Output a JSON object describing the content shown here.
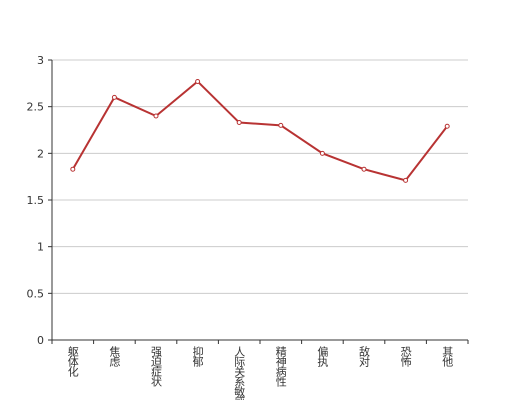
{
  "chart_data": {
    "type": "line",
    "categories": [
      "躯体化",
      "焦虑",
      "强迫症状",
      "抑郁",
      "人际关系敏感",
      "精神病性",
      "偏执",
      "敌对",
      "恐怖",
      "其他"
    ],
    "series": [
      {
        "color": "#b83333",
        "values": [
          1.83,
          2.6,
          2.4,
          2.77,
          2.33,
          2.3,
          2.0,
          1.83,
          1.71,
          2.29
        ]
      }
    ],
    "ylim": [
      0,
      3
    ],
    "yticks": [
      0,
      0.5,
      1,
      1.5,
      2,
      2.5,
      3
    ],
    "grid": true
  }
}
